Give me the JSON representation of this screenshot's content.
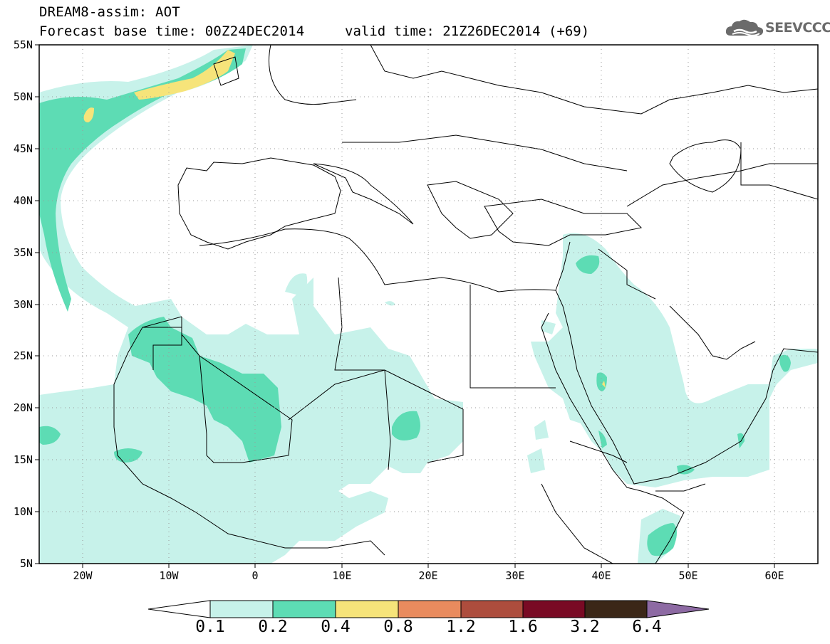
{
  "header": {
    "title": "DREAM8-assim: AOT",
    "base_time": "Forecast base time: 00Z24DEC2014",
    "valid_time": "valid time: 21Z26DEC2014 (+69)"
  },
  "logo": {
    "text": "SEEVCCC",
    "icon": "cloud-icon"
  },
  "map": {
    "lon_range": [
      -25,
      65
    ],
    "lat_range": [
      5,
      55
    ],
    "lat_ticks": [
      "5N",
      "10N",
      "15N",
      "20N",
      "25N",
      "30N",
      "35N",
      "40N",
      "45N",
      "50N",
      "55N"
    ],
    "lon_ticks": [
      "20W",
      "10W",
      "0",
      "10E",
      "20E",
      "30E",
      "40E",
      "50E",
      "60E"
    ]
  },
  "colorbar": {
    "labels": [
      "0.1",
      "0.2",
      "0.4",
      "0.8",
      "1.2",
      "1.6",
      "3.2",
      "6.4"
    ],
    "colors": [
      "#ffffff",
      "#c7f2ea",
      "#5ddcb4",
      "#f6e47a",
      "#e98b5e",
      "#ad4d3d",
      "#790a24",
      "#3b2717",
      "#8d6aa3"
    ]
  }
}
